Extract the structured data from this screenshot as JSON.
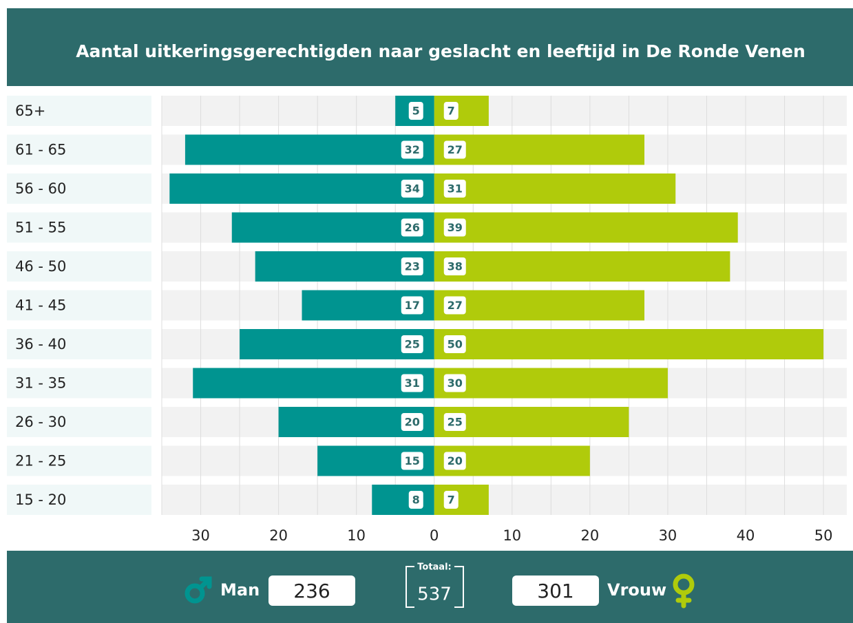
{
  "chart_data": {
    "type": "pyramid",
    "title": "Aantal uitkeringsgerechtigden naar geslacht en leeftijd in De Ronde Venen",
    "categories": [
      "65+",
      "61 - 65",
      "56 - 60",
      "51 - 55",
      "46 - 50",
      "41 - 45",
      "36 - 40",
      "31 - 35",
      "26 - 30",
      "21 - 25",
      "15 - 20"
    ],
    "series": [
      {
        "name": "Man",
        "color": "#009490",
        "values": [
          5,
          32,
          34,
          26,
          23,
          17,
          25,
          31,
          20,
          15,
          8
        ]
      },
      {
        "name": "Vrouw",
        "color": "#b0cb0b",
        "values": [
          7,
          27,
          31,
          39,
          38,
          27,
          50,
          30,
          25,
          20,
          7
        ]
      }
    ],
    "xlim": [
      -35,
      53
    ],
    "xticks": [
      {
        "value": -30,
        "label": "30"
      },
      {
        "value": -20,
        "label": "20"
      },
      {
        "value": -10,
        "label": "10"
      },
      0,
      10,
      20,
      30,
      40,
      50
    ],
    "minor_xticks": [
      -35,
      -25,
      -15,
      -5,
      5,
      15,
      25,
      35,
      45
    ],
    "grid": true,
    "totals": [
      236,
      301
    ],
    "total_label": "Totaal:",
    "total": 537
  }
}
